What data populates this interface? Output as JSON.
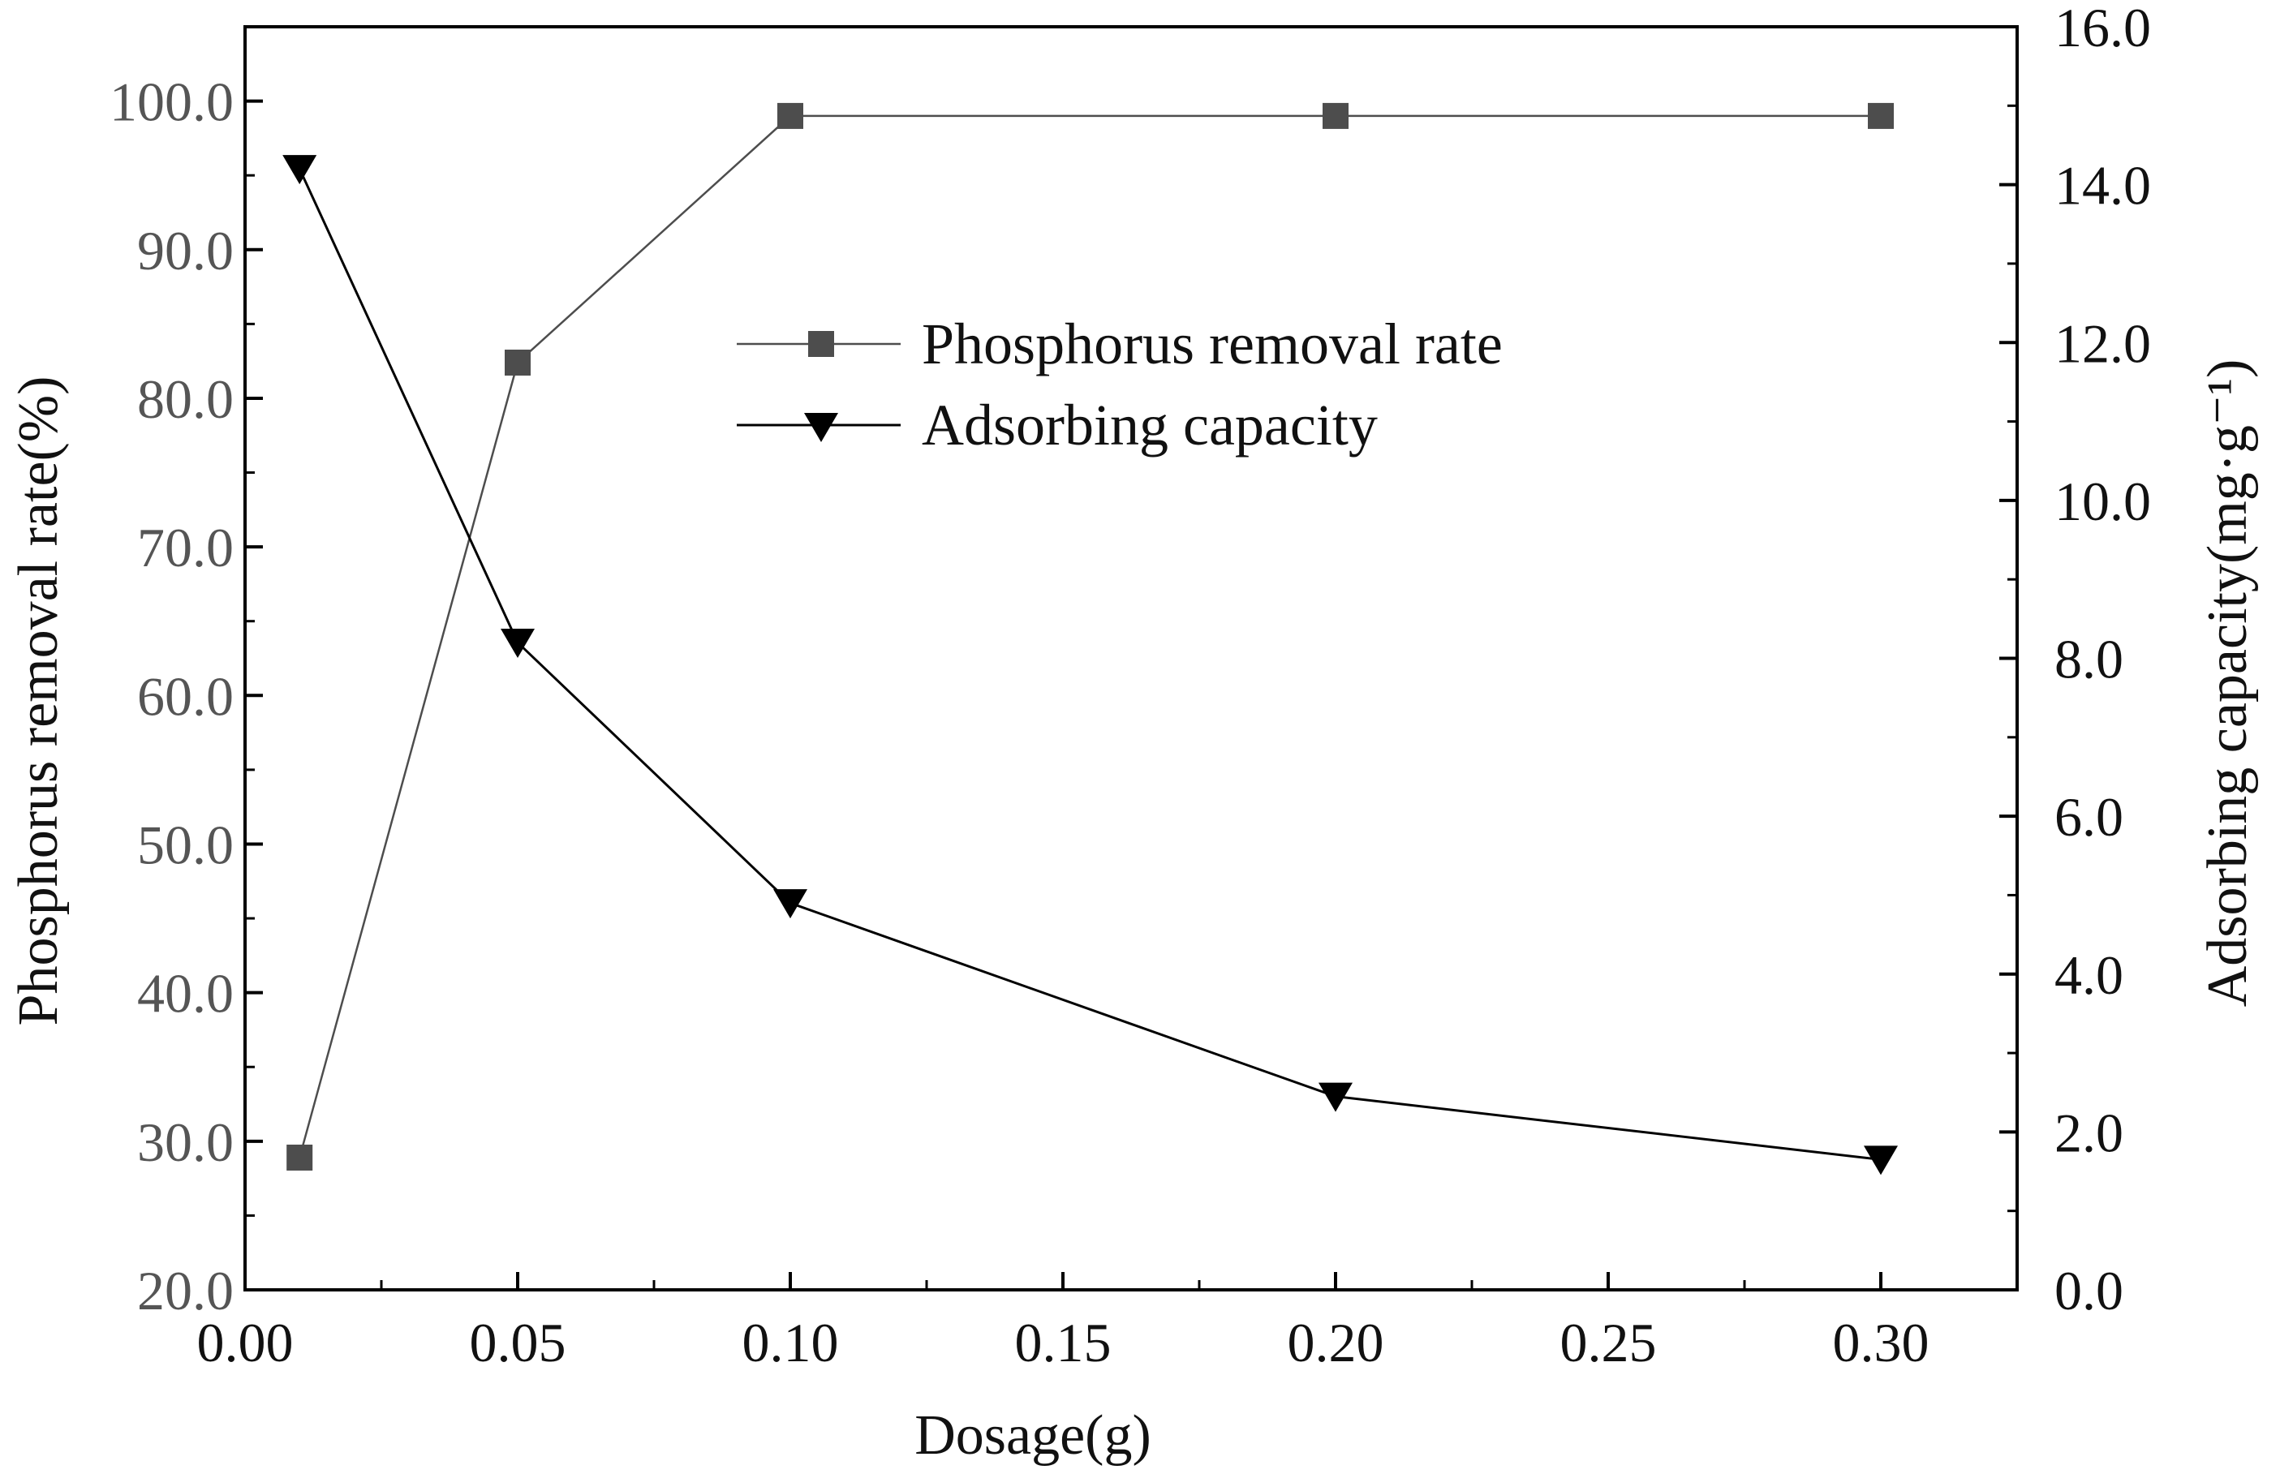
{
  "chart_data": {
    "type": "line",
    "title": "",
    "xlabel": "Dosage(g)",
    "ylabel_left": "Phosphorus removal rate(%)",
    "ylabel_right": "Adsorbing capacity(mg·g⁻¹)",
    "xlim": [
      0.0,
      0.325
    ],
    "ylim_left": [
      20.0,
      105.0
    ],
    "ylim_right": [
      0.0,
      16.0
    ],
    "x_ticks": [
      "0.00",
      "0.05",
      "0.10",
      "0.15",
      "0.20",
      "0.25",
      "0.30"
    ],
    "y_left_ticks": [
      "20.0",
      "30.0",
      "40.0",
      "50.0",
      "60.0",
      "70.0",
      "80.0",
      "90.0",
      "100.0"
    ],
    "y_right_ticks": [
      "0.0",
      "2.0",
      "4.0",
      "6.0",
      "8.0",
      "10.0",
      "12.0",
      "14.0",
      "16.0"
    ],
    "grid": false,
    "legend_position": "upper-center",
    "x": [
      0.01,
      0.05,
      0.1,
      0.2,
      0.3
    ],
    "series": [
      {
        "name": "Phosphorus removal rate",
        "axis": "left",
        "marker": "square",
        "color": "#4d4d4d",
        "values": [
          28.9,
          82.4,
          99.0,
          99.0,
          99.0
        ]
      },
      {
        "name": "Adsorbing capacity",
        "axis": "right",
        "marker": "triangle-down",
        "color": "#000000",
        "values": [
          14.2,
          8.2,
          4.9,
          2.45,
          1.65
        ]
      }
    ]
  }
}
